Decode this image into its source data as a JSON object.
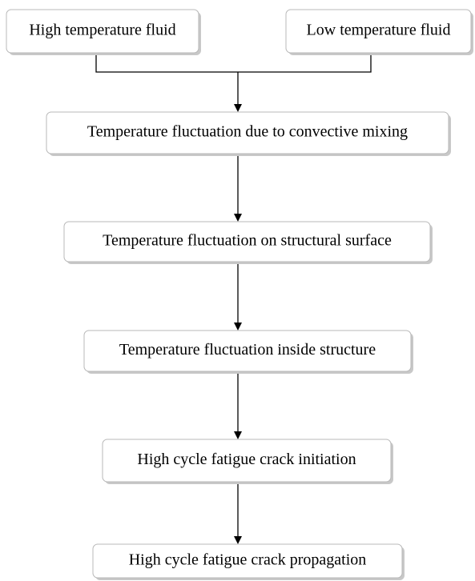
{
  "nodes": [
    {
      "label": "High temperature fluid"
    },
    {
      "label": "Low temperature fluid"
    },
    {
      "label": "Temperature fluctuation due to convective mixing"
    },
    {
      "label": "Temperature fluctuation on structural surface"
    },
    {
      "label": "Temperature fluctuation inside structure"
    },
    {
      "label": "High cycle fatigue crack initiation"
    },
    {
      "label": "High cycle fatigue crack propagation"
    }
  ]
}
